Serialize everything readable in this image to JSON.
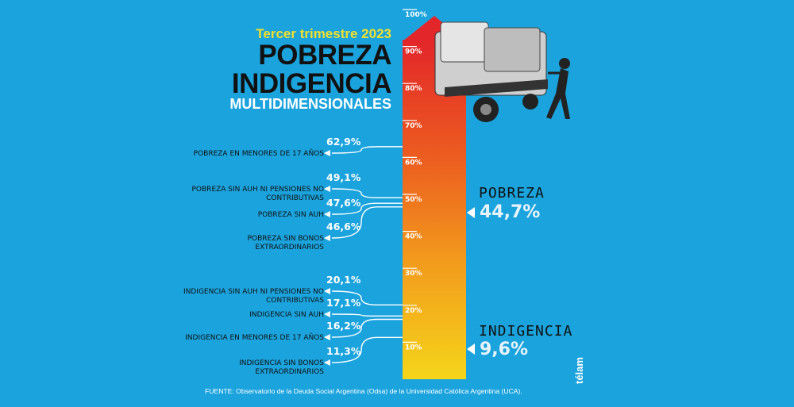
{
  "header": {
    "subtitle": "Tercer trimestre 2023",
    "title_line1": "POBREZA",
    "title_line2": "INDIGENCIA",
    "title_line3": "MULTIDIMENSIONALES"
  },
  "chart_data": {
    "type": "bar",
    "orientation": "vertical-thermometer",
    "ylim": [
      0,
      100
    ],
    "yticks": [
      "10%",
      "20%",
      "30%",
      "40%",
      "50%",
      "60%",
      "70%",
      "80%",
      "90%",
      "100%"
    ],
    "main_indicators": [
      {
        "name": "POBREZA",
        "value": 44.7,
        "value_label": "44,7%"
      },
      {
        "name": "INDIGENCIA",
        "value": 9.6,
        "value_label": "9,6%"
      }
    ],
    "indicators": [
      {
        "label": "POBREZA EN MENORES DE 17 AÑOS",
        "value": 62.9,
        "value_label": "62,9%"
      },
      {
        "label": "POBREZA SIN AUH NI PENSIONES NO CONTRIBUTIVAS",
        "value": 49.1,
        "value_label": "49,1%"
      },
      {
        "label": "POBREZA SIN AUH",
        "value": 47.6,
        "value_label": "47,6%"
      },
      {
        "label": "POBREZA SIN BONOS EXTRAORDINARIOS",
        "value": 46.6,
        "value_label": "46,6%"
      },
      {
        "label": "INDIGENCIA SIN AUH NI PENSIONES NO CONTRIBUTIVAS",
        "value": 20.1,
        "value_label": "20,1%"
      },
      {
        "label": "INDIGENCIA SIN AUH",
        "value": 17.1,
        "value_label": "17,1%"
      },
      {
        "label": "INDIGENCIA EN MENORES DE 17 AÑOS",
        "value": 16.2,
        "value_label": "16,2%"
      },
      {
        "label": "INDIGENCIA SIN BONOS EXTRAORDINARIOS",
        "value": 11.3,
        "value_label": "11,3%"
      }
    ],
    "colors": {
      "bar_top": "#e3262a",
      "bar_bottom": "#f5d51a",
      "background": "#1aa3dd"
    }
  },
  "footer": {
    "source": "FUENTE:  Observatorio de la Deuda Social Argentina (Odsa) de la Universidad Católica Argentina (UCA).",
    "logo_text": "télam"
  }
}
